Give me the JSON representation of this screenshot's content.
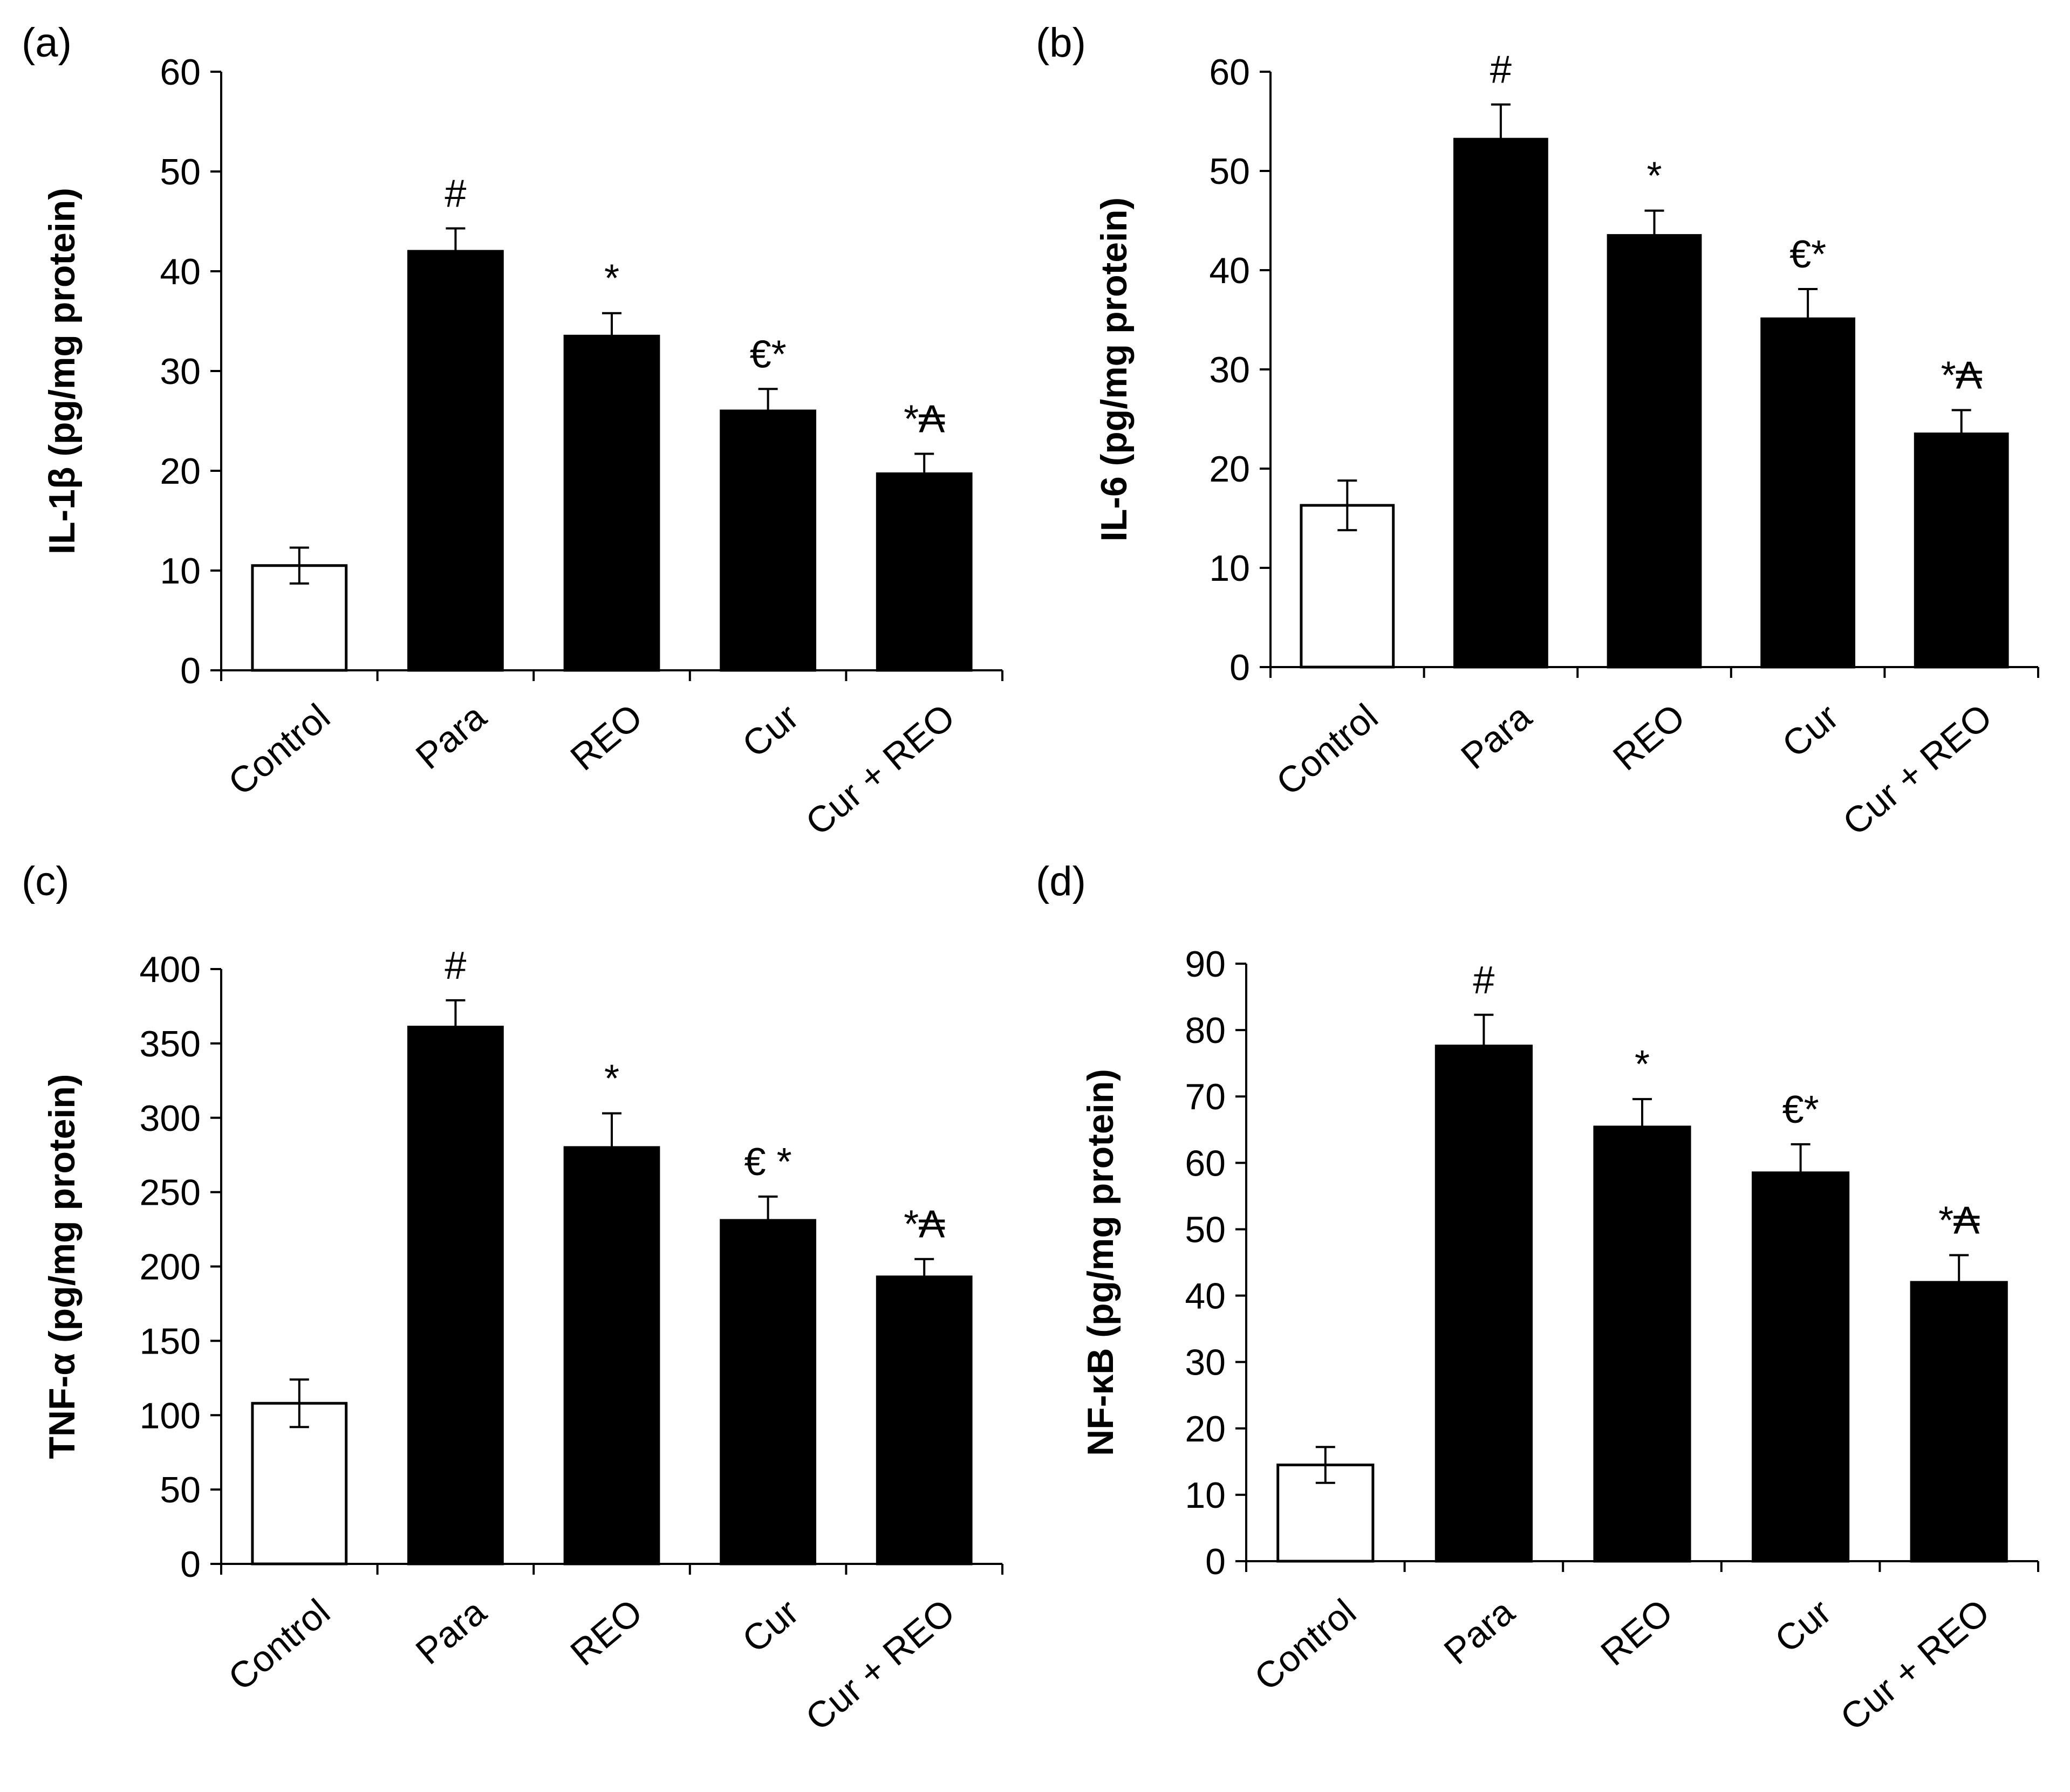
{
  "chart_data": [
    {
      "type": "bar",
      "panel": "(a)",
      "ylabel": "IL-1β (pg/mg protein)",
      "categories": [
        "Control",
        "Para",
        "REO",
        "Cur",
        "Cur + REO"
      ],
      "values": [
        10.5,
        42,
        33.5,
        26,
        19.7
      ],
      "errors": [
        1.8,
        2.3,
        2.3,
        2.2,
        2.0
      ],
      "bar_colors": [
        "#ffffff",
        "#000000",
        "#000000",
        "#000000",
        "#000000"
      ],
      "annotations": [
        "",
        "#",
        "*",
        "€*",
        "*₳"
      ],
      "ylim": [
        0,
        60
      ],
      "yticks": [
        0,
        10,
        20,
        30,
        40,
        50,
        60
      ]
    },
    {
      "type": "bar",
      "panel": "(b)",
      "ylabel": "IL-6 (pg/mg protein)",
      "categories": [
        "Control",
        "Para",
        "REO",
        "Cur",
        "Cur + REO"
      ],
      "values": [
        16.3,
        53.2,
        43.5,
        35.1,
        23.5
      ],
      "errors": [
        2.5,
        3.5,
        2.5,
        3.0,
        2.4
      ],
      "bar_colors": [
        "#ffffff",
        "#000000",
        "#000000",
        "#000000",
        "#000000"
      ],
      "annotations": [
        "",
        "#",
        "*",
        "€*",
        "*₳"
      ],
      "ylim": [
        0,
        60
      ],
      "yticks": [
        0,
        10,
        20,
        30,
        40,
        50,
        60
      ]
    },
    {
      "type": "bar",
      "panel": "(c)",
      "ylabel": "TNF-α (pg/mg protein)",
      "categories": [
        "Control",
        "Para",
        "REO",
        "Cur",
        "Cur + REO"
      ],
      "values": [
        108,
        361,
        280,
        231,
        193
      ],
      "errors": [
        16,
        18,
        23,
        16,
        12
      ],
      "bar_colors": [
        "#ffffff",
        "#000000",
        "#000000",
        "#000000",
        "#000000"
      ],
      "annotations": [
        "",
        "#",
        "*",
        "€ *",
        "*₳"
      ],
      "ylim": [
        0,
        400
      ],
      "yticks": [
        0,
        50,
        100,
        150,
        200,
        250,
        300,
        350,
        400
      ]
    },
    {
      "type": "bar",
      "panel": "(d)",
      "ylabel": "NF-κB (pg/mg protein)",
      "categories": [
        "Control",
        "Para",
        "REO",
        "Cur",
        "Cur + REO"
      ],
      "values": [
        14.5,
        77.6,
        65.4,
        58.5,
        42
      ],
      "errors": [
        2.7,
        4.7,
        4.2,
        4.3,
        4.1
      ],
      "bar_colors": [
        "#ffffff",
        "#000000",
        "#000000",
        "#000000",
        "#000000"
      ],
      "annotations": [
        "",
        "#",
        "*",
        "€*",
        "*₳"
      ],
      "ylim": [
        0,
        90
      ],
      "yticks": [
        0,
        10,
        20,
        30,
        40,
        50,
        60,
        70,
        80,
        90
      ]
    }
  ]
}
